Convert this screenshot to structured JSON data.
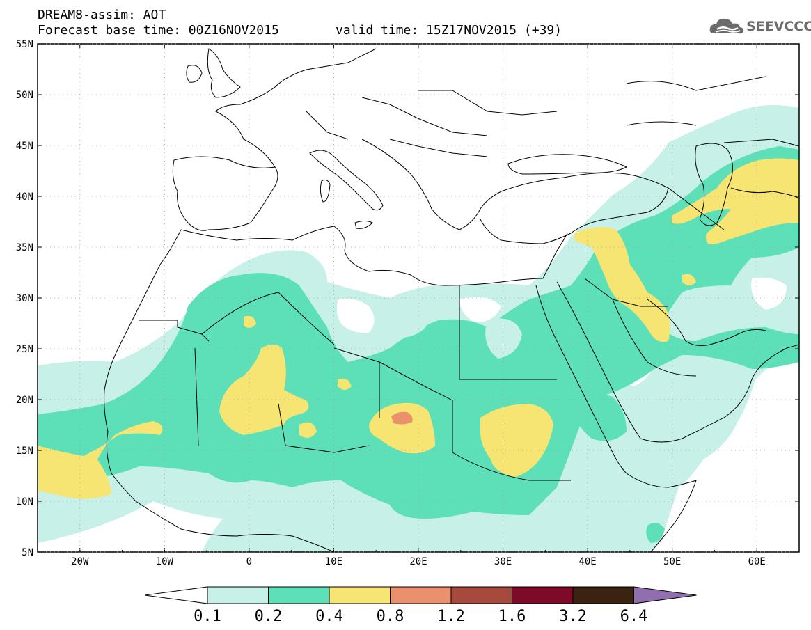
{
  "header": {
    "model_line": "DREAM8-assim: AOT",
    "base_time": "Forecast base time: 00Z16NOV2015",
    "valid_time": "valid time: 15Z17NOV2015 (+39)",
    "logo_text": "SEEVCCC"
  },
  "map": {
    "lon_range": [
      -25,
      65
    ],
    "lat_range": [
      5,
      55
    ],
    "lat_labels": [
      "55N",
      "50N",
      "45N",
      "40N",
      "35N",
      "30N",
      "25N",
      "20N",
      "15N",
      "10N",
      "5N"
    ],
    "lon_labels": [
      "20W",
      "10W",
      "0",
      "10E",
      "20E",
      "30E",
      "40E",
      "50E",
      "60E"
    ]
  },
  "legend": {
    "labels": [
      "0.1",
      "0.2",
      "0.4",
      "0.8",
      "1.2",
      "1.6",
      "3.2",
      "6.4"
    ],
    "colors": [
      "#ffffff",
      "#c6f0e8",
      "#5ddfb7",
      "#f6e572",
      "#ea906d",
      "#a74a3e",
      "#7d0a26",
      "#3a2411",
      "#916eae"
    ]
  }
}
